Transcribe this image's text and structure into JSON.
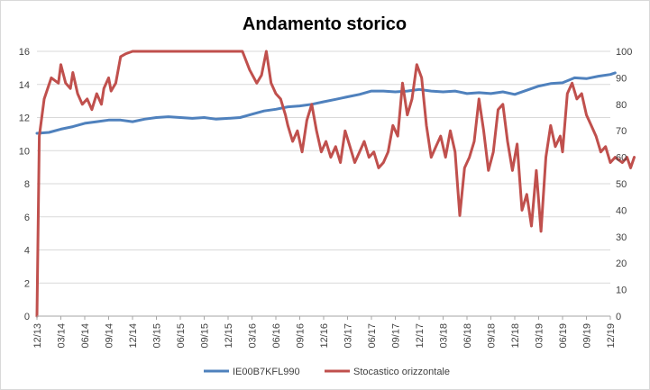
{
  "chart_data": {
    "type": "line",
    "title": "Andamento storico",
    "xlabel": "",
    "ylabel": "",
    "ylim": [
      0,
      16
    ],
    "y2lim": [
      0,
      100
    ],
    "y_ticks": [
      "0",
      "2",
      "4",
      "6",
      "8",
      "10",
      "12",
      "14",
      "16"
    ],
    "y2_ticks": [
      "0",
      "10",
      "20",
      "30",
      "40",
      "50",
      "60",
      "70",
      "80",
      "90",
      "100"
    ],
    "x_ticks": [
      "12/13",
      "03/14",
      "06/14",
      "09/14",
      "12/14",
      "03/15",
      "06/15",
      "09/15",
      "12/15",
      "03/16",
      "06/16",
      "09/16",
      "12/16",
      "03/17",
      "06/17",
      "09/17",
      "12/17",
      "03/18",
      "06/18",
      "09/18",
      "12/18",
      "03/19",
      "06/19",
      "09/19",
      "12/19"
    ],
    "grid": true,
    "legend_position": "bottom",
    "series": [
      {
        "name": "IE00B7KFL990",
        "axis": "left",
        "color": "#4f81bd",
        "points": [
          [
            0,
            11.05
          ],
          [
            0.5,
            11.1
          ],
          [
            1,
            11.3
          ],
          [
            1.5,
            11.45
          ],
          [
            2,
            11.65
          ],
          [
            2.5,
            11.75
          ],
          [
            3,
            11.85
          ],
          [
            3.5,
            11.85
          ],
          [
            4,
            11.75
          ],
          [
            4.5,
            11.9
          ],
          [
            5,
            12.0
          ],
          [
            5.5,
            12.05
          ],
          [
            6,
            12.0
          ],
          [
            6.5,
            11.95
          ],
          [
            7,
            12.0
          ],
          [
            7.5,
            11.9
          ],
          [
            8,
            11.95
          ],
          [
            8.5,
            12.0
          ],
          [
            9,
            12.2
          ],
          [
            9.5,
            12.4
          ],
          [
            10,
            12.5
          ],
          [
            10.5,
            12.65
          ],
          [
            11,
            12.7
          ],
          [
            11.5,
            12.8
          ],
          [
            12,
            12.95
          ],
          [
            12.5,
            13.1
          ],
          [
            13,
            13.25
          ],
          [
            13.5,
            13.4
          ],
          [
            14,
            13.6
          ],
          [
            14.5,
            13.6
          ],
          [
            15,
            13.55
          ],
          [
            15.5,
            13.6
          ],
          [
            16,
            13.7
          ],
          [
            16.5,
            13.6
          ],
          [
            17,
            13.55
          ],
          [
            17.5,
            13.6
          ],
          [
            18,
            13.45
          ],
          [
            18.5,
            13.5
          ],
          [
            19,
            13.45
          ],
          [
            19.5,
            13.55
          ],
          [
            20,
            13.4
          ],
          [
            20.5,
            13.65
          ],
          [
            21,
            13.9
          ],
          [
            21.5,
            14.05
          ],
          [
            22,
            14.1
          ],
          [
            22.5,
            14.4
          ],
          [
            23,
            14.35
          ],
          [
            23.5,
            14.5
          ],
          [
            24,
            14.6
          ],
          [
            24.2,
            14.7
          ]
        ]
      },
      {
        "name": "Stocastico orizzontale",
        "axis": "right",
        "color": "#c0504d",
        "points": [
          [
            0,
            0
          ],
          [
            0.1,
            68
          ],
          [
            0.3,
            82
          ],
          [
            0.6,
            90
          ],
          [
            0.9,
            88
          ],
          [
            1.0,
            95
          ],
          [
            1.2,
            88
          ],
          [
            1.4,
            86
          ],
          [
            1.5,
            92
          ],
          [
            1.7,
            84
          ],
          [
            1.9,
            80
          ],
          [
            2.1,
            82
          ],
          [
            2.3,
            78
          ],
          [
            2.5,
            84
          ],
          [
            2.7,
            80
          ],
          [
            2.8,
            86
          ],
          [
            3.0,
            90
          ],
          [
            3.1,
            85
          ],
          [
            3.3,
            88
          ],
          [
            3.5,
            98
          ],
          [
            3.7,
            99
          ],
          [
            4.0,
            100
          ],
          [
            5,
            100
          ],
          [
            6,
            100
          ],
          [
            7,
            100
          ],
          [
            8,
            100
          ],
          [
            8.6,
            100
          ],
          [
            8.9,
            93
          ],
          [
            9.2,
            88
          ],
          [
            9.4,
            91
          ],
          [
            9.6,
            100
          ],
          [
            9.8,
            88
          ],
          [
            10.0,
            84
          ],
          [
            10.2,
            82
          ],
          [
            10.4,
            76
          ],
          [
            10.5,
            72
          ],
          [
            10.7,
            66
          ],
          [
            10.9,
            70
          ],
          [
            11.1,
            62
          ],
          [
            11.3,
            74
          ],
          [
            11.5,
            80
          ],
          [
            11.7,
            70
          ],
          [
            11.9,
            62
          ],
          [
            12.1,
            66
          ],
          [
            12.3,
            60
          ],
          [
            12.5,
            64
          ],
          [
            12.7,
            58
          ],
          [
            12.9,
            70
          ],
          [
            13.1,
            64
          ],
          [
            13.3,
            58
          ],
          [
            13.5,
            62
          ],
          [
            13.7,
            66
          ],
          [
            13.9,
            60
          ],
          [
            14.1,
            62
          ],
          [
            14.3,
            56
          ],
          [
            14.5,
            58
          ],
          [
            14.7,
            62
          ],
          [
            14.9,
            72
          ],
          [
            15.1,
            68
          ],
          [
            15.3,
            88
          ],
          [
            15.5,
            76
          ],
          [
            15.7,
            82
          ],
          [
            15.9,
            95
          ],
          [
            16.1,
            90
          ],
          [
            16.3,
            72
          ],
          [
            16.5,
            60
          ],
          [
            16.7,
            64
          ],
          [
            16.9,
            68
          ],
          [
            17.1,
            60
          ],
          [
            17.3,
            70
          ],
          [
            17.5,
            62
          ],
          [
            17.7,
            38
          ],
          [
            17.9,
            56
          ],
          [
            18.1,
            60
          ],
          [
            18.3,
            66
          ],
          [
            18.5,
            82
          ],
          [
            18.7,
            70
          ],
          [
            18.9,
            55
          ],
          [
            19.1,
            62
          ],
          [
            19.3,
            78
          ],
          [
            19.5,
            80
          ],
          [
            19.7,
            66
          ],
          [
            19.9,
            55
          ],
          [
            20.1,
            65
          ],
          [
            20.3,
            40
          ],
          [
            20.5,
            46
          ],
          [
            20.7,
            34
          ],
          [
            20.9,
            55
          ],
          [
            21.1,
            32
          ],
          [
            21.3,
            60
          ],
          [
            21.5,
            72
          ],
          [
            21.7,
            64
          ],
          [
            21.9,
            68
          ],
          [
            22.0,
            62
          ],
          [
            22.2,
            84
          ],
          [
            22.4,
            88
          ],
          [
            22.6,
            82
          ],
          [
            22.8,
            84
          ],
          [
            23.0,
            76
          ],
          [
            23.2,
            72
          ],
          [
            23.4,
            68
          ],
          [
            23.6,
            62
          ],
          [
            23.8,
            64
          ],
          [
            24.0,
            58
          ],
          [
            24.2,
            60
          ],
          [
            24.5,
            58
          ],
          [
            24.7,
            60
          ],
          [
            24.85,
            56
          ],
          [
            25.0,
            60
          ]
        ]
      }
    ]
  }
}
